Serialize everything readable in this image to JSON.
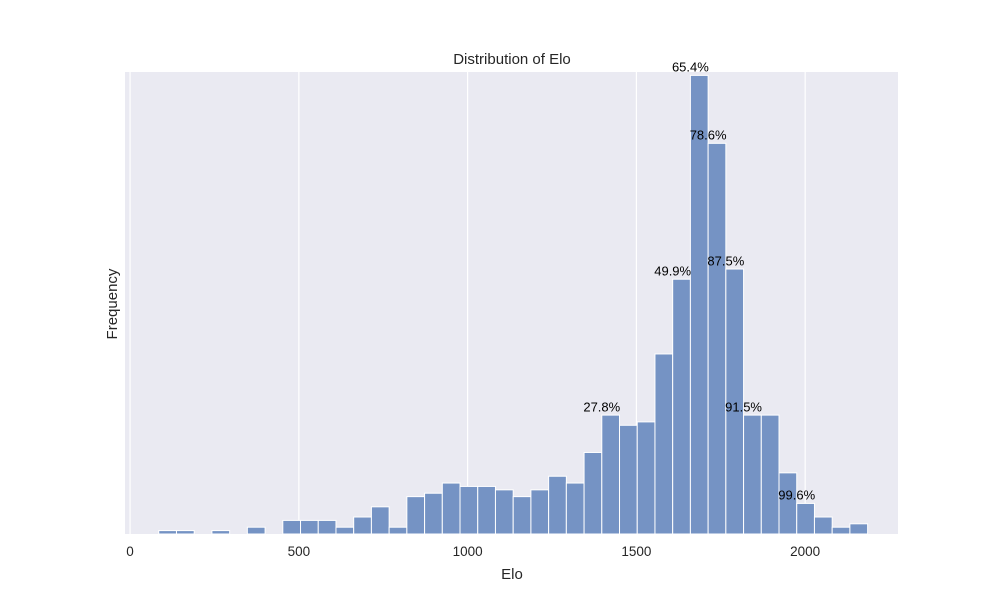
{
  "chart_data": {
    "type": "bar",
    "title": "Distribution of Elo",
    "xlabel": "Elo",
    "ylabel": "Frequency",
    "xlim": [
      -15,
      2275
    ],
    "ylim": [
      0,
      13.6
    ],
    "xticks": [
      {
        "value": 0,
        "label": "0"
      },
      {
        "value": 500,
        "label": "500"
      },
      {
        "value": 1000,
        "label": "1000"
      },
      {
        "value": 1500,
        "label": "1500"
      },
      {
        "value": 2000,
        "label": "2000"
      }
    ],
    "grid": true,
    "bin_width": 52.5,
    "bins": [
      {
        "x0": 85.0,
        "x1": 137.5,
        "value": 0.1
      },
      {
        "x0": 137.5,
        "x1": 190.0,
        "value": 0.1
      },
      {
        "x0": 190.0,
        "x1": 242.5,
        "value": 0.0
      },
      {
        "x0": 242.5,
        "x1": 295.0,
        "value": 0.1
      },
      {
        "x0": 295.0,
        "x1": 347.5,
        "value": 0.0
      },
      {
        "x0": 347.5,
        "x1": 400.0,
        "value": 0.2
      },
      {
        "x0": 400.0,
        "x1": 452.5,
        "value": 0.0
      },
      {
        "x0": 452.5,
        "x1": 505.0,
        "value": 0.4
      },
      {
        "x0": 505.0,
        "x1": 557.5,
        "value": 0.4
      },
      {
        "x0": 557.5,
        "x1": 610.0,
        "value": 0.4
      },
      {
        "x0": 610.0,
        "x1": 662.5,
        "value": 0.2
      },
      {
        "x0": 662.5,
        "x1": 715.0,
        "value": 0.5
      },
      {
        "x0": 715.0,
        "x1": 767.5,
        "value": 0.8
      },
      {
        "x0": 767.5,
        "x1": 820.0,
        "value": 0.2
      },
      {
        "x0": 820.0,
        "x1": 872.5,
        "value": 1.1
      },
      {
        "x0": 872.5,
        "x1": 925.0,
        "value": 1.2
      },
      {
        "x0": 925.0,
        "x1": 977.5,
        "value": 1.5
      },
      {
        "x0": 977.5,
        "x1": 1030.0,
        "value": 1.4
      },
      {
        "x0": 1030.0,
        "x1": 1082.5,
        "value": 1.4
      },
      {
        "x0": 1082.5,
        "x1": 1135.0,
        "value": 1.3
      },
      {
        "x0": 1135.0,
        "x1": 1187.5,
        "value": 1.1
      },
      {
        "x0": 1187.5,
        "x1": 1240.0,
        "value": 1.3
      },
      {
        "x0": 1240.0,
        "x1": 1292.5,
        "value": 1.7
      },
      {
        "x0": 1292.5,
        "x1": 1345.0,
        "value": 1.5
      },
      {
        "x0": 1345.0,
        "x1": 1397.5,
        "value": 2.4
      },
      {
        "x0": 1397.5,
        "x1": 1450.0,
        "value": 3.5
      },
      {
        "x0": 1450.0,
        "x1": 1502.5,
        "value": 3.2
      },
      {
        "x0": 1502.5,
        "x1": 1555.0,
        "value": 3.3
      },
      {
        "x0": 1555.0,
        "x1": 1607.5,
        "value": 5.3
      },
      {
        "x0": 1607.5,
        "x1": 1660.0,
        "value": 7.5
      },
      {
        "x0": 1660.0,
        "x1": 1712.5,
        "value": 13.5
      },
      {
        "x0": 1712.5,
        "x1": 1765.0,
        "value": 11.5
      },
      {
        "x0": 1765.0,
        "x1": 1817.5,
        "value": 7.8
      },
      {
        "x0": 1817.5,
        "x1": 1870.0,
        "value": 3.5
      },
      {
        "x0": 1870.0,
        "x1": 1922.5,
        "value": 3.5
      },
      {
        "x0": 1922.5,
        "x1": 1975.0,
        "value": 1.8
      },
      {
        "x0": 1975.0,
        "x1": 2027.5,
        "value": 0.9
      },
      {
        "x0": 2027.5,
        "x1": 2080.0,
        "value": 0.5
      },
      {
        "x0": 2080.0,
        "x1": 2132.5,
        "value": 0.2
      },
      {
        "x0": 2132.5,
        "x1": 2185.0,
        "value": 0.3
      }
    ],
    "annotations": [
      {
        "text": "27.8%",
        "x": 1397.5,
        "y": 3.55
      },
      {
        "text": "49.9%",
        "x": 1607.5,
        "y": 7.55
      },
      {
        "text": "65.4%",
        "x": 1660.0,
        "y": 13.55
      },
      {
        "text": "78.6%",
        "x": 1712.5,
        "y": 11.55
      },
      {
        "text": "87.5%",
        "x": 1765.0,
        "y": 7.85
      },
      {
        "text": "91.5%",
        "x": 1817.5,
        "y": 3.55
      },
      {
        "text": "99.6%",
        "x": 1975.0,
        "y": 0.95
      }
    ],
    "colors": {
      "bar": "#7593c4",
      "bar_edge": "#ffffff",
      "plot_bg": "#eaeaf2",
      "grid": "#ffffff"
    }
  }
}
